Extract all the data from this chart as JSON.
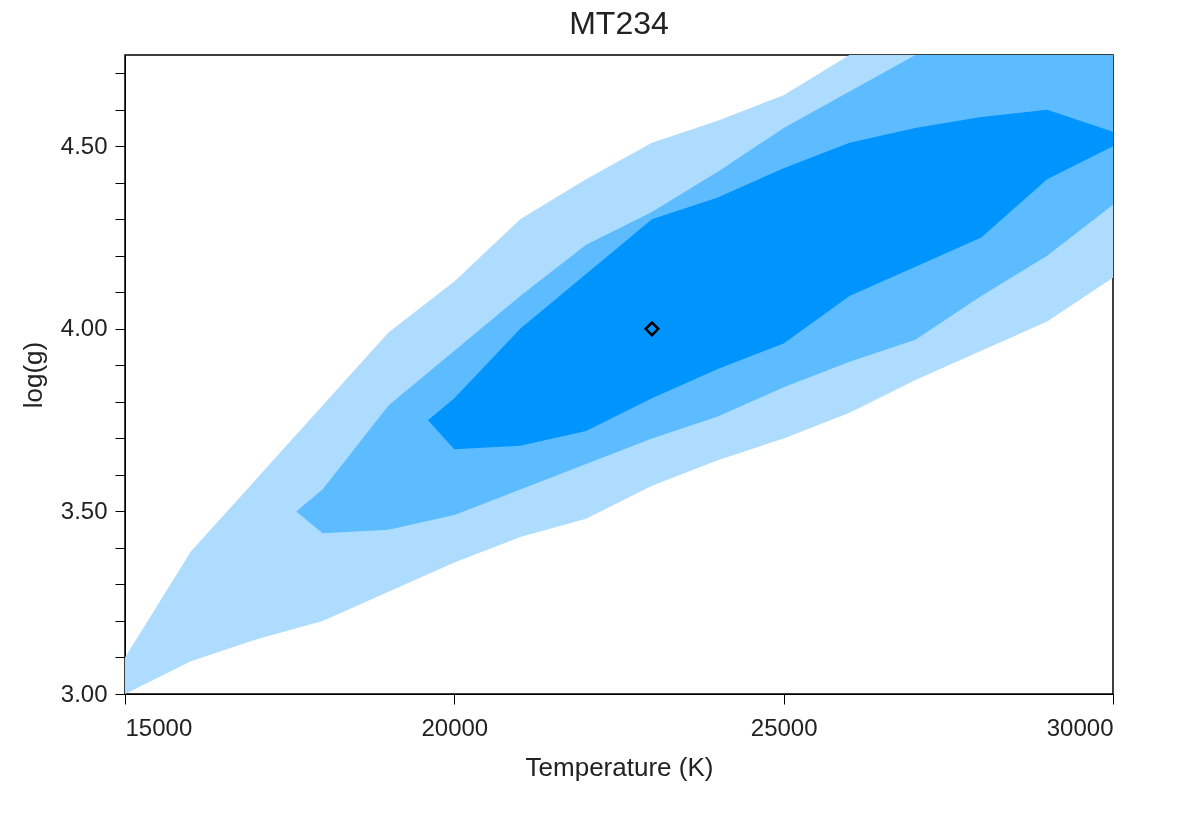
{
  "chart_data": {
    "type": "area",
    "title": "MT234",
    "xlabel": "Temperature (K)",
    "ylabel": "log(g)",
    "xlim": [
      15000,
      30000
    ],
    "xticks": [
      15000,
      20000,
      25000,
      30000
    ],
    "ylim": [
      3.0,
      4.75
    ],
    "yticks": [
      {
        "value": 3.0,
        "label": "3.00"
      },
      {
        "value": 3.1,
        "label": null
      },
      {
        "value": 3.2,
        "label": null
      },
      {
        "value": 3.3,
        "label": null
      },
      {
        "value": 3.4,
        "label": null
      },
      {
        "value": 3.5,
        "label": "3.50"
      },
      {
        "value": 3.6,
        "label": null
      },
      {
        "value": 3.7,
        "label": null
      },
      {
        "value": 3.8,
        "label": null
      },
      {
        "value": 3.9,
        "label": null
      },
      {
        "value": 4.0,
        "label": "4.00"
      },
      {
        "value": 4.1,
        "label": null
      },
      {
        "value": 4.2,
        "label": null
      },
      {
        "value": 4.3,
        "label": null
      },
      {
        "value": 4.4,
        "label": null
      },
      {
        "value": 4.5,
        "label": "4.50"
      },
      {
        "value": 4.6,
        "label": null
      },
      {
        "value": 4.7,
        "label": null
      }
    ],
    "series": [
      {
        "color": "#aedcff",
        "x": [
          15000,
          16000,
          17000,
          18000,
          19000,
          20000,
          21000,
          22000,
          23000,
          24000,
          25000,
          26000,
          27000,
          28000,
          29000,
          30000
        ],
        "values": [
          null,
          null,
          null,
          null,
          null,
          null,
          null,
          null,
          null,
          null,
          null,
          null,
          null,
          null,
          null,
          null
        ],
        "lower": [
          3.0,
          3.09,
          3.15,
          3.2,
          3.28,
          3.36,
          3.43,
          3.48,
          3.57,
          3.64,
          3.7,
          3.77,
          3.86,
          3.94,
          4.02,
          4.14
        ],
        "upper": [
          3.1,
          3.39,
          3.59,
          3.79,
          3.99,
          4.13,
          4.3,
          4.41,
          4.51,
          4.57,
          4.64,
          4.75,
          4.75,
          4.75,
          4.75,
          4.75
        ]
      },
      {
        "color": "#5cbcff",
        "x": [
          17600,
          18000,
          19000,
          20000,
          21000,
          22000,
          23000,
          24000,
          25000,
          26000,
          27000,
          28000,
          29000,
          30000
        ],
        "values": [
          null,
          null,
          null,
          null,
          null,
          null,
          null,
          null,
          null,
          null,
          null,
          null,
          null,
          null
        ],
        "lower": [
          3.5,
          3.44,
          3.45,
          3.49,
          3.56,
          3.63,
          3.7,
          3.76,
          3.84,
          3.91,
          3.97,
          4.09,
          4.2,
          4.34
        ],
        "upper": [
          3.5,
          3.56,
          3.79,
          3.94,
          4.09,
          4.23,
          4.32,
          4.43,
          4.55,
          4.65,
          4.75,
          4.75,
          4.75,
          4.75
        ]
      },
      {
        "color": "#0094ff",
        "x": [
          19600,
          20000,
          21000,
          22000,
          23000,
          24000,
          25000,
          26000,
          27000,
          28000,
          29000,
          30000
        ],
        "values": [
          null,
          null,
          null,
          null,
          null,
          null,
          null,
          null,
          null,
          null,
          null,
          null
        ],
        "lower": [
          3.75,
          3.67,
          3.68,
          3.72,
          3.81,
          3.89,
          3.96,
          4.09,
          4.17,
          4.25,
          4.41,
          4.5
        ],
        "upper": [
          3.75,
          3.81,
          4.0,
          4.15,
          4.3,
          4.36,
          4.44,
          4.51,
          4.55,
          4.58,
          4.6,
          4.54
        ]
      },
      {
        "type": "scatter",
        "color": "#000000",
        "marker": "diamond",
        "x": [
          23000
        ],
        "values": [
          4.0
        ]
      }
    ]
  }
}
